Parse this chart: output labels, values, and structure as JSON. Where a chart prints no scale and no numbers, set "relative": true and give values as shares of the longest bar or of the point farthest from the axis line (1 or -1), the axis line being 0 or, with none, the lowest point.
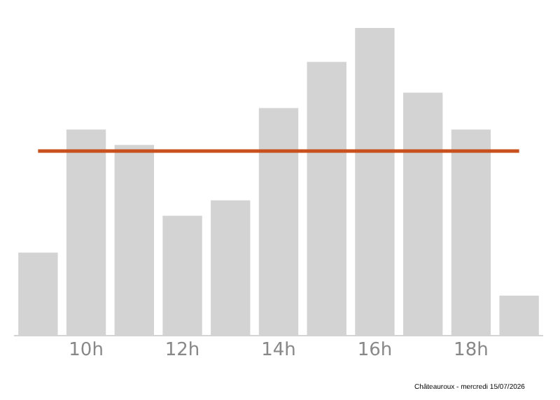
{
  "chart_data": {
    "type": "bar",
    "relative": true,
    "categories": [
      null,
      "10h",
      null,
      "12h",
      null,
      "14h",
      null,
      "16h",
      null,
      "18h",
      null
    ],
    "color": "#d3d3d3",
    "values": [
      0.27,
      0.67,
      0.62,
      0.39,
      0.44,
      0.74,
      0.89,
      1,
      0.79,
      0.67,
      0.13
    ],
    "ref_lines": [
      {
        "axis": "y",
        "value": 0.6,
        "color": "#c8501e"
      }
    ],
    "annotations": [
      "Châteauroux - mercredi 15/07/2026"
    ]
  }
}
